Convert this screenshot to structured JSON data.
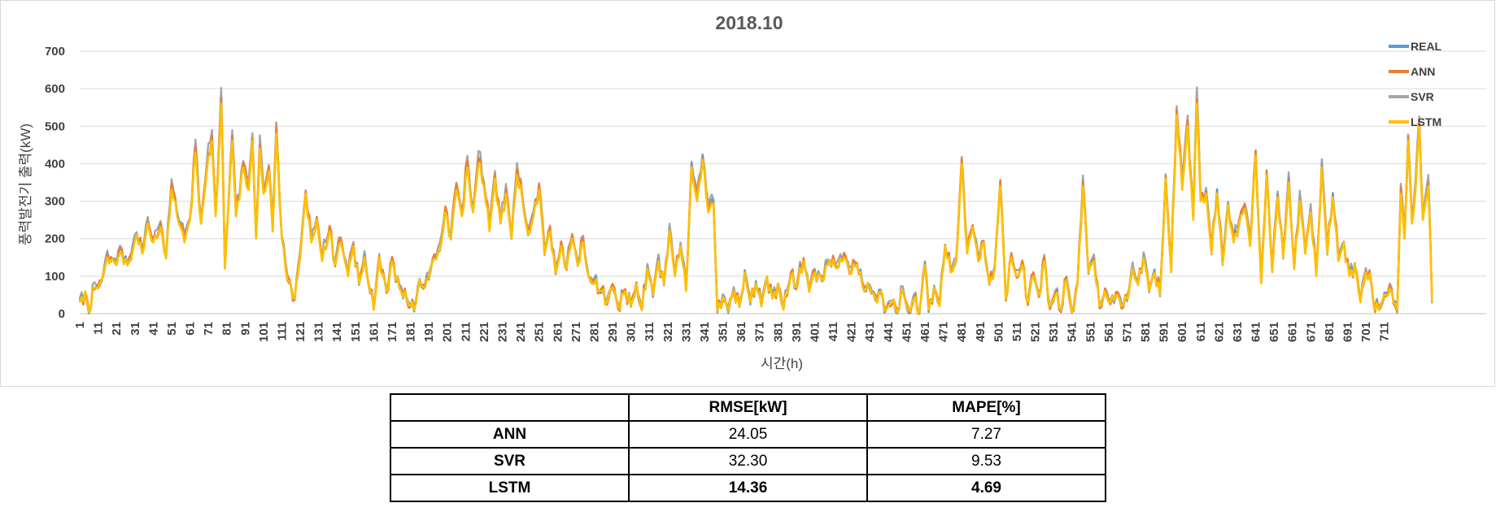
{
  "chart_data": {
    "type": "line",
    "title": "2018.10",
    "xlabel": "시간(h)",
    "ylabel": "풍력발전기 출력(kW)",
    "ylim": [
      0,
      700
    ],
    "yticks": [
      0,
      100,
      200,
      300,
      400,
      500,
      600,
      700
    ],
    "xlim": [
      1,
      720
    ],
    "xticks": [
      1,
      11,
      21,
      31,
      41,
      51,
      61,
      71,
      81,
      91,
      101,
      111,
      121,
      131,
      141,
      151,
      161,
      171,
      181,
      191,
      201,
      211,
      221,
      231,
      241,
      251,
      261,
      271,
      281,
      291,
      301,
      311,
      321,
      331,
      341,
      351,
      361,
      371,
      381,
      391,
      401,
      411,
      421,
      431,
      441,
      451,
      461,
      471,
      481,
      491,
      501,
      511,
      521,
      531,
      541,
      551,
      561,
      571,
      581,
      591,
      601,
      611,
      621,
      631,
      641,
      651,
      661,
      671,
      681,
      691,
      701,
      711
    ],
    "grid": true,
    "legend_position": "top-right",
    "anchor_points_LSTM": [
      [
        1,
        30
      ],
      [
        4,
        60
      ],
      [
        6,
        5
      ],
      [
        9,
        70
      ],
      [
        12,
        80
      ],
      [
        16,
        150
      ],
      [
        20,
        140
      ],
      [
        24,
        160
      ],
      [
        27,
        130
      ],
      [
        30,
        170
      ],
      [
        32,
        210
      ],
      [
        35,
        160
      ],
      [
        38,
        240
      ],
      [
        41,
        190
      ],
      [
        45,
        230
      ],
      [
        48,
        150
      ],
      [
        51,
        330
      ],
      [
        54,
        260
      ],
      [
        58,
        190
      ],
      [
        61,
        250
      ],
      [
        64,
        430
      ],
      [
        67,
        240
      ],
      [
        70,
        370
      ],
      [
        73,
        460
      ],
      [
        75,
        260
      ],
      [
        78,
        560
      ],
      [
        80,
        120
      ],
      [
        84,
        460
      ],
      [
        86,
        260
      ],
      [
        90,
        390
      ],
      [
        93,
        330
      ],
      [
        95,
        460
      ],
      [
        97,
        200
      ],
      [
        99,
        440
      ],
      [
        101,
        320
      ],
      [
        104,
        380
      ],
      [
        106,
        220
      ],
      [
        108,
        480
      ],
      [
        111,
        200
      ],
      [
        114,
        90
      ],
      [
        118,
        40
      ],
      [
        121,
        150
      ],
      [
        124,
        320
      ],
      [
        127,
        190
      ],
      [
        130,
        250
      ],
      [
        133,
        140
      ],
      [
        137,
        220
      ],
      [
        140,
        130
      ],
      [
        143,
        190
      ],
      [
        147,
        100
      ],
      [
        150,
        180
      ],
      [
        153,
        80
      ],
      [
        156,
        150
      ],
      [
        159,
        60
      ],
      [
        161,
        10
      ],
      [
        164,
        150
      ],
      [
        168,
        60
      ],
      [
        171,
        140
      ],
      [
        175,
        70
      ],
      [
        179,
        40
      ],
      [
        183,
        10
      ],
      [
        186,
        90
      ],
      [
        189,
        70
      ],
      [
        193,
        140
      ],
      [
        197,
        170
      ],
      [
        200,
        270
      ],
      [
        203,
        200
      ],
      [
        206,
        330
      ],
      [
        209,
        260
      ],
      [
        212,
        390
      ],
      [
        215,
        270
      ],
      [
        218,
        400
      ],
      [
        221,
        340
      ],
      [
        224,
        220
      ],
      [
        227,
        360
      ],
      [
        230,
        240
      ],
      [
        233,
        320
      ],
      [
        236,
        200
      ],
      [
        239,
        370
      ],
      [
        242,
        300
      ],
      [
        245,
        210
      ],
      [
        248,
        260
      ],
      [
        251,
        330
      ],
      [
        254,
        160
      ],
      [
        257,
        220
      ],
      [
        260,
        110
      ],
      [
        263,
        180
      ],
      [
        266,
        120
      ],
      [
        269,
        200
      ],
      [
        272,
        130
      ],
      [
        275,
        190
      ],
      [
        278,
        100
      ],
      [
        281,
        80
      ],
      [
        285,
        60
      ],
      [
        288,
        30
      ],
      [
        291,
        70
      ],
      [
        294,
        20
      ],
      [
        298,
        60
      ],
      [
        301,
        20
      ],
      [
        304,
        80
      ],
      [
        307,
        10
      ],
      [
        310,
        120
      ],
      [
        313,
        50
      ],
      [
        316,
        140
      ],
      [
        319,
        80
      ],
      [
        322,
        220
      ],
      [
        325,
        100
      ],
      [
        328,
        180
      ],
      [
        331,
        60
      ],
      [
        334,
        390
      ],
      [
        337,
        300
      ],
      [
        340,
        410
      ],
      [
        343,
        270
      ],
      [
        346,
        290
      ],
      [
        348,
        10
      ],
      [
        351,
        40
      ],
      [
        354,
        10
      ],
      [
        357,
        60
      ],
      [
        360,
        20
      ],
      [
        363,
        110
      ],
      [
        366,
        30
      ],
      [
        369,
        80
      ],
      [
        372,
        20
      ],
      [
        375,
        100
      ],
      [
        378,
        40
      ],
      [
        381,
        80
      ],
      [
        384,
        10
      ],
      [
        388,
        100
      ],
      [
        391,
        70
      ],
      [
        395,
        140
      ],
      [
        398,
        60
      ],
      [
        401,
        110
      ],
      [
        405,
        90
      ],
      [
        409,
        140
      ],
      [
        413,
        120
      ],
      [
        417,
        150
      ],
      [
        420,
        110
      ],
      [
        424,
        130
      ],
      [
        428,
        60
      ],
      [
        431,
        70
      ],
      [
        434,
        40
      ],
      [
        437,
        60
      ],
      [
        440,
        10
      ],
      [
        443,
        30
      ],
      [
        446,
        5
      ],
      [
        449,
        60
      ],
      [
        452,
        10
      ],
      [
        455,
        40
      ],
      [
        458,
        5
      ],
      [
        461,
        130
      ],
      [
        463,
        10
      ],
      [
        466,
        70
      ],
      [
        469,
        20
      ],
      [
        472,
        180
      ],
      [
        475,
        110
      ],
      [
        478,
        140
      ],
      [
        481,
        400
      ],
      [
        484,
        160
      ],
      [
        487,
        230
      ],
      [
        490,
        140
      ],
      [
        493,
        190
      ],
      [
        496,
        80
      ],
      [
        499,
        120
      ],
      [
        502,
        340
      ],
      [
        505,
        40
      ],
      [
        508,
        150
      ],
      [
        511,
        100
      ],
      [
        514,
        130
      ],
      [
        517,
        30
      ],
      [
        520,
        100
      ],
      [
        523,
        50
      ],
      [
        526,
        140
      ],
      [
        529,
        20
      ],
      [
        532,
        50
      ],
      [
        535,
        10
      ],
      [
        538,
        90
      ],
      [
        541,
        5
      ],
      [
        544,
        80
      ],
      [
        547,
        340
      ],
      [
        550,
        110
      ],
      [
        553,
        140
      ],
      [
        556,
        20
      ],
      [
        559,
        60
      ],
      [
        562,
        30
      ],
      [
        565,
        50
      ],
      [
        568,
        20
      ],
      [
        571,
        40
      ],
      [
        574,
        120
      ],
      [
        577,
        80
      ],
      [
        580,
        150
      ],
      [
        583,
        60
      ],
      [
        586,
        110
      ],
      [
        589,
        50
      ],
      [
        592,
        360
      ],
      [
        595,
        110
      ],
      [
        598,
        530
      ],
      [
        601,
        330
      ],
      [
        604,
        500
      ],
      [
        607,
        250
      ],
      [
        609,
        560
      ],
      [
        611,
        300
      ],
      [
        614,
        320
      ],
      [
        617,
        160
      ],
      [
        620,
        320
      ],
      [
        623,
        130
      ],
      [
        626,
        290
      ],
      [
        629,
        190
      ],
      [
        632,
        240
      ],
      [
        635,
        280
      ],
      [
        638,
        180
      ],
      [
        641,
        420
      ],
      [
        644,
        80
      ],
      [
        647,
        370
      ],
      [
        650,
        110
      ],
      [
        653,
        310
      ],
      [
        656,
        150
      ],
      [
        659,
        350
      ],
      [
        662,
        120
      ],
      [
        665,
        300
      ],
      [
        668,
        160
      ],
      [
        671,
        270
      ],
      [
        674,
        100
      ],
      [
        677,
        390
      ],
      [
        680,
        160
      ],
      [
        683,
        310
      ],
      [
        686,
        140
      ],
      [
        689,
        190
      ],
      [
        692,
        100
      ],
      [
        695,
        130
      ],
      [
        698,
        30
      ],
      [
        701,
        110
      ],
      [
        704,
        80
      ],
      [
        706,
        10
      ],
      [
        709,
        20
      ],
      [
        712,
        50
      ],
      [
        715,
        60
      ],
      [
        718,
        10
      ],
      [
        720,
        320
      ],
      [
        722,
        200
      ],
      [
        724,
        460
      ],
      [
        726,
        240
      ],
      [
        728,
        330
      ],
      [
        730,
        500
      ],
      [
        732,
        250
      ],
      [
        735,
        340
      ],
      [
        737,
        30
      ]
    ],
    "series": [
      {
        "name": "REAL",
        "color": "#5b9bd5"
      },
      {
        "name": "ANN",
        "color": "#ed7d31"
      },
      {
        "name": "SVR",
        "color": "#a5a5a5"
      },
      {
        "name": "LSTM",
        "color": "#ffc000"
      }
    ]
  },
  "table": {
    "headers": [
      "",
      "RMSE[kW]",
      "MAPE[%]"
    ],
    "rows": [
      {
        "label": "ANN",
        "rmse": "24.05",
        "mape": "7.27"
      },
      {
        "label": "SVR",
        "rmse": "32.30",
        "mape": "9.53"
      },
      {
        "label": "LSTM",
        "rmse": "14.36",
        "mape": "4.69"
      }
    ]
  }
}
